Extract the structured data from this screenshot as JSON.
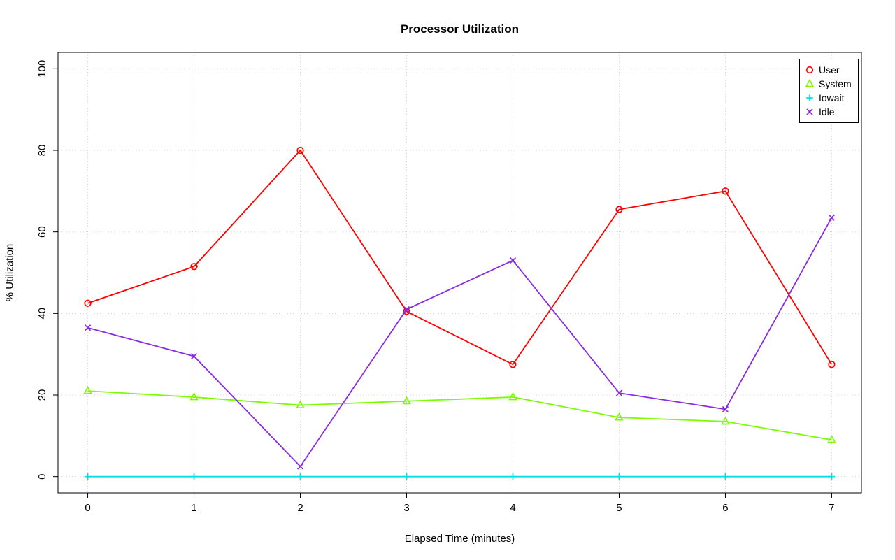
{
  "chart_data": {
    "type": "line",
    "title": "Processor Utilization",
    "xlabel": "Elapsed Time (minutes)",
    "ylabel": "% Utilization",
    "x": [
      0,
      1,
      2,
      3,
      4,
      5,
      6,
      7
    ],
    "xlim": [
      0,
      7
    ],
    "ylim": [
      0,
      100
    ],
    "xticks": [
      0,
      1,
      2,
      3,
      4,
      5,
      6,
      7
    ],
    "yticks": [
      0,
      20,
      40,
      60,
      80,
      100
    ],
    "grid": true,
    "grid_style": "dotted",
    "grid_color": "#d3d3d3",
    "axis_color": "#000000",
    "legend_position": "top-right",
    "series": [
      {
        "name": "User",
        "color": "#ff0000",
        "marker": "circle",
        "values": [
          42.5,
          51.5,
          80,
          40.5,
          27.5,
          65.5,
          70,
          27.5
        ]
      },
      {
        "name": "System",
        "color": "#7cfc00",
        "marker": "triangle",
        "values": [
          21,
          19.5,
          17.5,
          18.5,
          19.5,
          14.5,
          13.5,
          9
        ]
      },
      {
        "name": "Iowait",
        "color": "#00e0e6",
        "marker": "plus",
        "values": [
          0,
          0,
          0,
          0,
          0,
          0,
          0,
          0
        ]
      },
      {
        "name": "Idle",
        "color": "#8a2be2",
        "marker": "x",
        "values": [
          36.5,
          29.5,
          2.5,
          41,
          53,
          20.5,
          16.5,
          63.5
        ]
      }
    ]
  }
}
